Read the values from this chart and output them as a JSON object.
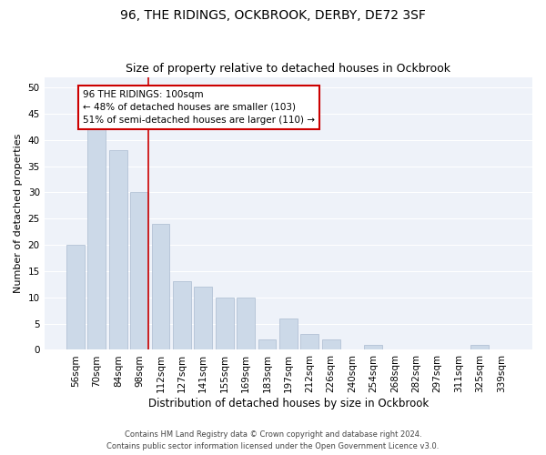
{
  "title": "96, THE RIDINGS, OCKBROOK, DERBY, DE72 3SF",
  "subtitle": "Size of property relative to detached houses in Ockbrook",
  "xlabel": "Distribution of detached houses by size in Ockbrook",
  "ylabel": "Number of detached properties",
  "categories": [
    "56sqm",
    "70sqm",
    "84sqm",
    "98sqm",
    "112sqm",
    "127sqm",
    "141sqm",
    "155sqm",
    "169sqm",
    "183sqm",
    "197sqm",
    "212sqm",
    "226sqm",
    "240sqm",
    "254sqm",
    "268sqm",
    "282sqm",
    "297sqm",
    "311sqm",
    "325sqm",
    "339sqm"
  ],
  "values": [
    20,
    42,
    38,
    30,
    24,
    13,
    12,
    10,
    10,
    2,
    6,
    3,
    2,
    0,
    1,
    0,
    0,
    0,
    0,
    1,
    0
  ],
  "bar_color": "#ccd9e8",
  "bar_edgecolor": "#aabbd0",
  "vline_index": 3,
  "vline_color": "#cc0000",
  "annotation_text": "96 THE RIDINGS: 100sqm\n← 48% of detached houses are smaller (103)\n51% of semi-detached houses are larger (110) →",
  "annotation_fontsize": 7.5,
  "annotation_box_color": "#ffffff",
  "annotation_box_edgecolor": "#cc0000",
  "ylim": [
    0,
    52
  ],
  "yticks": [
    0,
    5,
    10,
    15,
    20,
    25,
    30,
    35,
    40,
    45,
    50
  ],
  "footnote1": "Contains HM Land Registry data © Crown copyright and database right 2024.",
  "footnote2": "Contains public sector information licensed under the Open Government Licence v3.0.",
  "bg_color": "#eef2f9",
  "grid_color": "#ffffff",
  "title_fontsize": 10,
  "subtitle_fontsize": 9,
  "xlabel_fontsize": 8.5,
  "ylabel_fontsize": 8,
  "tick_fontsize": 7.5,
  "footnote_fontsize": 6
}
